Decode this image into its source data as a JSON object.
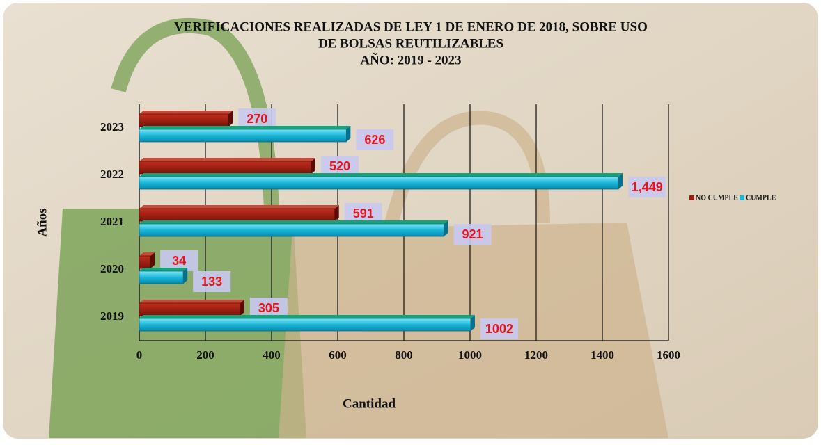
{
  "chart_data": {
    "type": "bar",
    "orientation": "horizontal",
    "title": [
      "VERIFICACIONES REALIZADAS DE LEY 1 DE ENERO DE 2018, SOBRE USO",
      "DE BOLSAS REUTILIZABLES",
      "AÑO: 2019 - 2023"
    ],
    "x_label": "Cantidad",
    "y_label": "Años",
    "categories": [
      "2019",
      "2020",
      "2021",
      "2022",
      "2023"
    ],
    "series": [
      {
        "name": "NO CUMPLE",
        "color": "#a01e10",
        "values": [
          305,
          34,
          591,
          520,
          270
        ]
      },
      {
        "name": "CUMPLE",
        "color": "#19b8d9",
        "values": [
          1002,
          133,
          921,
          1449,
          626
        ],
        "value_labels": [
          "1002",
          "133",
          "921",
          "1,449",
          "626"
        ]
      }
    ],
    "xlim": [
      0,
      1600
    ],
    "xticks": [
      0,
      200,
      400,
      600,
      800,
      1000,
      1200,
      1400,
      1600
    ],
    "grid": true,
    "legend": "right"
  }
}
